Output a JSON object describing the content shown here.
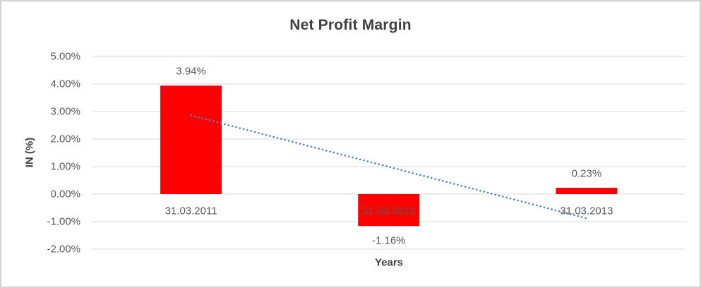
{
  "window": {
    "background_color": "#ffffff",
    "border_color": "#d2d2d2"
  },
  "chart_data": {
    "type": "bar",
    "title": "Net Profit Margin",
    "xlabel": "Years",
    "ylabel": "IN (%)",
    "categories": [
      "31.03.2011",
      "31.03.2012",
      "31.03.2013"
    ],
    "values": [
      3.94,
      -1.16,
      0.23
    ],
    "data_labels": [
      "3.94%",
      "-1.16%",
      "0.23%"
    ],
    "bar_color": "#ff0000",
    "ylim": [
      -2,
      5
    ],
    "ytick_values": [
      5,
      4,
      3,
      2,
      1,
      0,
      -1,
      -2
    ],
    "ytick_labels": [
      "5.00%",
      "4.00%",
      "3.00%",
      "2.00%",
      "1.00%",
      "0.00%",
      "-1.00%",
      "-2.00%"
    ],
    "grid": true,
    "gridline_color": "#d9d9d9",
    "legend_position": "none",
    "text_color": "#595959",
    "title_color": "#404040",
    "trendline": {
      "type": "linear",
      "style": "dotted",
      "color": "#4a86c8",
      "start_value": 2.86,
      "end_value": -0.88
    }
  }
}
